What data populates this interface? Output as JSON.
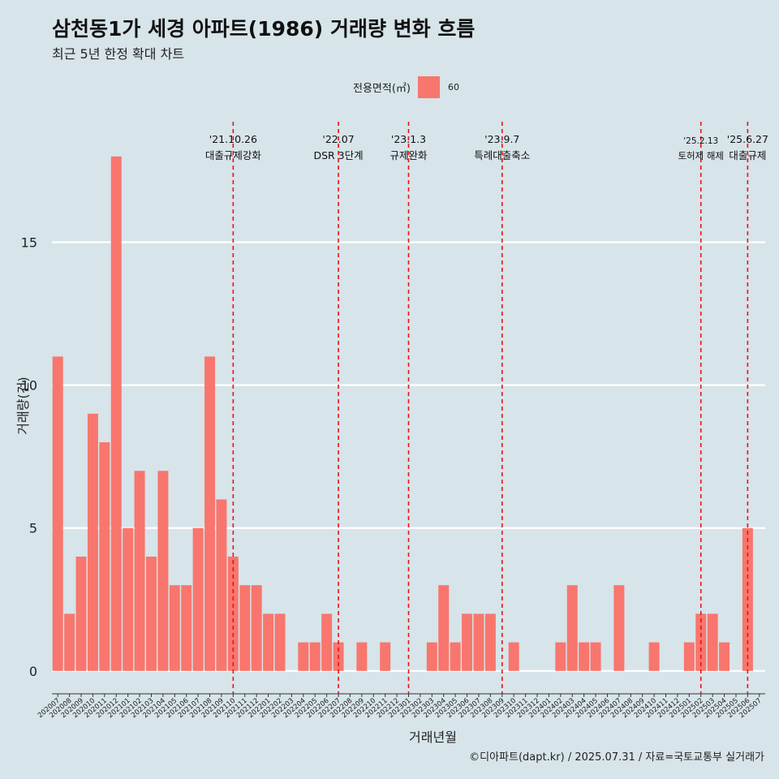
{
  "title": "삼천동1가 세경 아파트(1986) 거래량 변화 흐름",
  "subtitle": "최근 5년 한정 확대 차트",
  "caption": "©디아파트(dapt.kr) / 2025.07.31 / 자료=국토교통부 실거래가",
  "legend": {
    "title": "전용면적(㎡)",
    "item": "60",
    "color": "#f8766d"
  },
  "chart_data": {
    "type": "bar",
    "xlabel": "거래년월",
    "ylabel": "거래량(건)",
    "ylim": [
      -0.8,
      19.5
    ],
    "yticks": [
      0,
      5,
      10,
      15
    ],
    "grid": true,
    "legend_position": "top",
    "categories": [
      "202007",
      "202008",
      "202009",
      "202010",
      "202011",
      "202012",
      "202101",
      "202102",
      "202103",
      "202104",
      "202105",
      "202106",
      "202107",
      "202108",
      "202109",
      "202110",
      "202111",
      "202112",
      "202201",
      "202202",
      "202203",
      "202204",
      "202205",
      "202206",
      "202207",
      "202208",
      "202209",
      "202210",
      "202211",
      "202212",
      "202301",
      "202302",
      "202303",
      "202304",
      "202305",
      "202306",
      "202307",
      "202308",
      "202309",
      "202310",
      "202311",
      "202312",
      "202401",
      "202402",
      "202403",
      "202404",
      "202405",
      "202406",
      "202407",
      "202408",
      "202409",
      "202410",
      "202411",
      "202412",
      "202501",
      "202502",
      "202503",
      "202504",
      "202505",
      "202506",
      "202507"
    ],
    "series": [
      {
        "name": "60",
        "color": "#f8766d",
        "values": [
          11,
          2,
          4,
          9,
          8,
          18,
          5,
          7,
          4,
          7,
          3,
          3,
          5,
          11,
          6,
          4,
          3,
          3,
          2,
          2,
          0,
          1,
          1,
          2,
          1,
          0,
          1,
          0,
          1,
          0,
          0,
          0,
          1,
          3,
          1,
          2,
          2,
          2,
          0,
          1,
          0,
          0,
          0,
          1,
          3,
          1,
          1,
          0,
          3,
          0,
          0,
          1,
          0,
          0,
          1,
          2,
          2,
          1,
          0,
          5,
          0
        ]
      }
    ],
    "annotations": [
      {
        "category": "202110",
        "date": "'21.10.26",
        "label": "대출규제강화"
      },
      {
        "category": "202207",
        "date": "'22.07",
        "label": "DSR 3단계"
      },
      {
        "category": "202301",
        "date": "'23.1.3",
        "label": "규제완화"
      },
      {
        "category": "202309",
        "date": "'23.9.7",
        "label": "특례대출축소"
      },
      {
        "category": "202502",
        "date": "'25.2.13",
        "label": "토허제 해제"
      },
      {
        "category": "202506",
        "date": "'25.6.27",
        "label": "대출규제"
      }
    ]
  }
}
